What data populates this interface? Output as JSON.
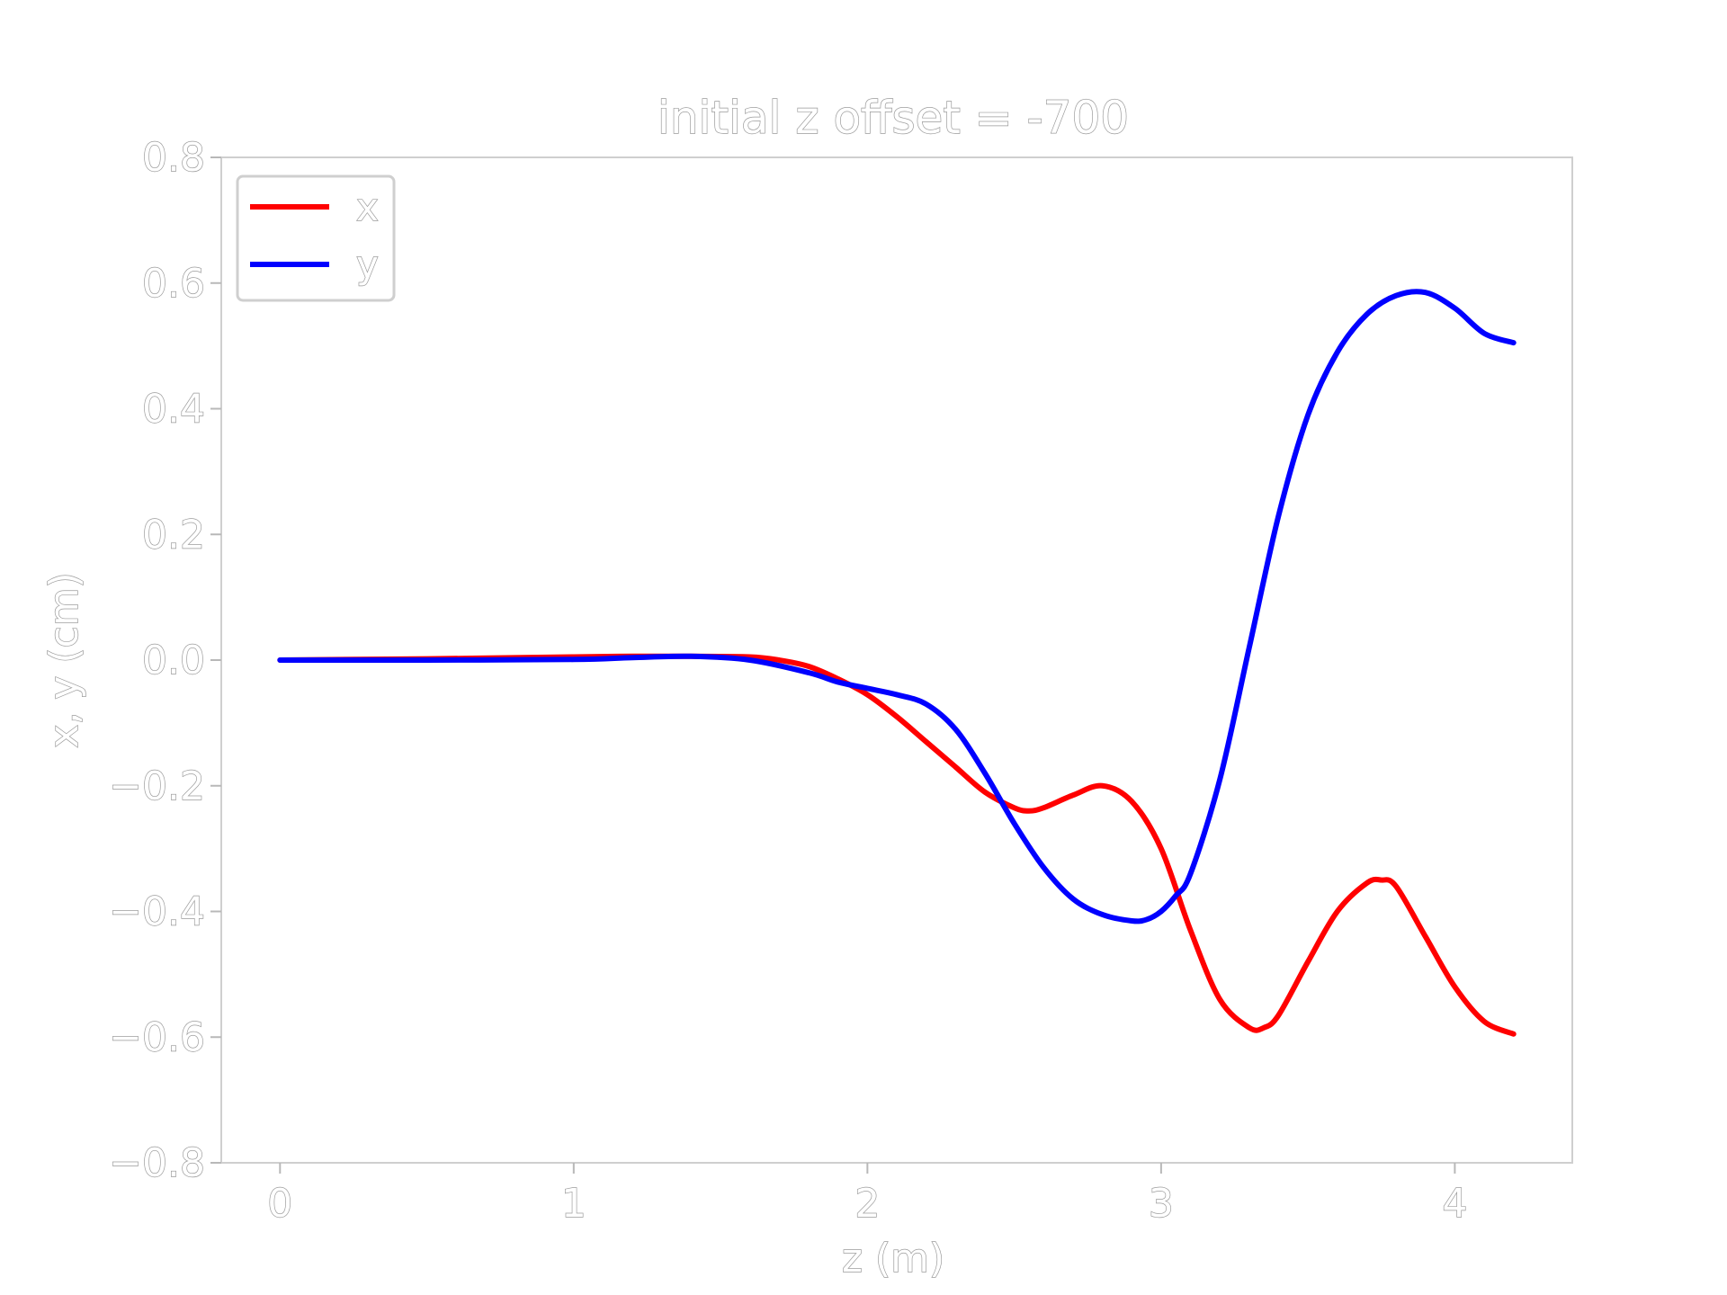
{
  "chart_data": {
    "type": "line",
    "title": "initial z offset = -700",
    "xlabel": "z (m)",
    "ylabel": "x, y (cm)",
    "xlim": [
      -0.2,
      4.4
    ],
    "ylim": [
      -0.8,
      0.8
    ],
    "xticks": [
      0,
      1,
      2,
      3,
      4
    ],
    "xtick_labels": [
      "0",
      "1",
      "2",
      "3",
      "4"
    ],
    "yticks": [
      0.8,
      0.6,
      0.4,
      0.2,
      0.0,
      -0.2,
      -0.4,
      -0.6,
      -0.8
    ],
    "ytick_labels": [
      "0.8",
      "0.6",
      "0.4",
      "0.2",
      "0.0",
      "−0.2",
      "−0.4",
      "−0.6",
      "−0.8"
    ],
    "grid": false,
    "legend_position": "top-left",
    "series": [
      {
        "name": "x",
        "color": "#ff0000",
        "x": [
          0,
          0.5,
          1.0,
          1.2,
          1.4,
          1.6,
          1.7,
          1.8,
          1.9,
          2.0,
          2.1,
          2.2,
          2.3,
          2.4,
          2.5,
          2.55,
          2.6,
          2.7,
          2.8,
          2.9,
          3.0,
          3.1,
          3.2,
          3.3,
          3.35,
          3.4,
          3.5,
          3.6,
          3.7,
          3.75,
          3.8,
          3.9,
          4.0,
          4.1,
          4.2
        ],
        "y": [
          0.0,
          0.002,
          0.005,
          0.006,
          0.006,
          0.005,
          0.0,
          -0.01,
          -0.03,
          -0.055,
          -0.09,
          -0.13,
          -0.17,
          -0.21,
          -0.235,
          -0.24,
          -0.235,
          -0.215,
          -0.2,
          -0.225,
          -0.3,
          -0.43,
          -0.54,
          -0.585,
          -0.585,
          -0.565,
          -0.48,
          -0.4,
          -0.355,
          -0.35,
          -0.36,
          -0.44,
          -0.52,
          -0.575,
          -0.595
        ]
      },
      {
        "name": "y",
        "color": "#0000ff",
        "x": [
          0,
          0.5,
          1.0,
          1.2,
          1.4,
          1.6,
          1.8,
          1.9,
          2.0,
          2.1,
          2.2,
          2.3,
          2.4,
          2.5,
          2.6,
          2.7,
          2.8,
          2.9,
          2.95,
          3.0,
          3.05,
          3.1,
          3.2,
          3.3,
          3.4,
          3.5,
          3.6,
          3.7,
          3.8,
          3.9,
          4.0,
          4.1,
          4.2
        ],
        "y": [
          0.0,
          0.0,
          0.001,
          0.004,
          0.006,
          0.0,
          -0.02,
          -0.035,
          -0.045,
          -0.055,
          -0.07,
          -0.11,
          -0.18,
          -0.26,
          -0.33,
          -0.38,
          -0.405,
          -0.415,
          -0.413,
          -0.4,
          -0.375,
          -0.34,
          -0.19,
          0.02,
          0.23,
          0.39,
          0.49,
          0.55,
          0.58,
          0.585,
          0.56,
          0.52,
          0.505
        ]
      }
    ]
  }
}
